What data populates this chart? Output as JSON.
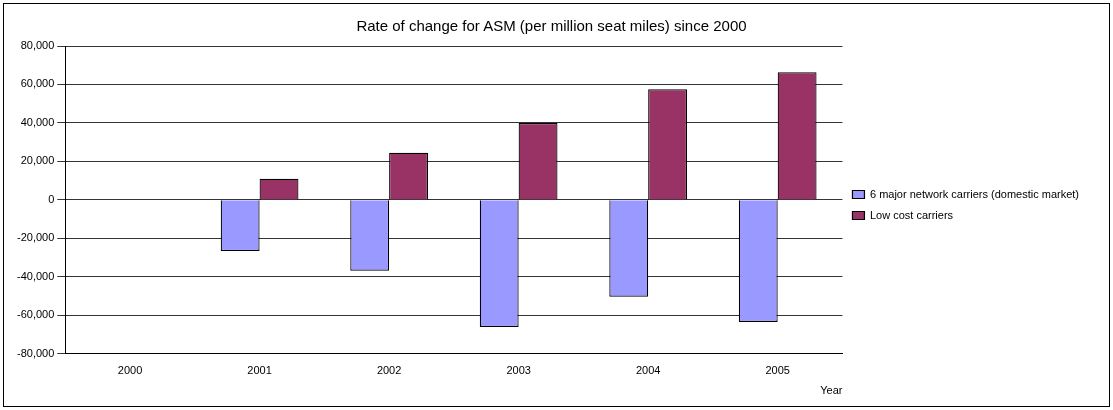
{
  "chart_data": {
    "type": "bar",
    "title": "Rate of change for ASM (per million seat miles) since 2000",
    "xlabel": "Year",
    "categories": [
      "2000",
      "2001",
      "2002",
      "2003",
      "2004",
      "2005"
    ],
    "series": [
      {
        "name": "6 major network carriers (domestic market)",
        "color": "#9999ff",
        "values": [
          0,
          -26600,
          -36900,
          -66100,
          -50400,
          -63500
        ]
      },
      {
        "name": "Low cost carriers",
        "color": "#993366",
        "values": [
          0,
          10900,
          24500,
          39900,
          57500,
          66300
        ]
      }
    ],
    "ylim": [
      -80000,
      80000
    ],
    "yticks": [
      {
        "value": -80000,
        "label": "-80,000"
      },
      {
        "value": -60000,
        "label": "-60,000"
      },
      {
        "value": -40000,
        "label": "-40,000"
      },
      {
        "value": -20000,
        "label": "-20,000"
      },
      0,
      {
        "value": 20000,
        "label": "20,000"
      },
      {
        "value": 40000,
        "label": "40,000"
      },
      {
        "value": 60000,
        "label": "60,000"
      },
      {
        "value": 80000,
        "label": "80,000"
      }
    ],
    "grid": "y",
    "legend": "right"
  }
}
